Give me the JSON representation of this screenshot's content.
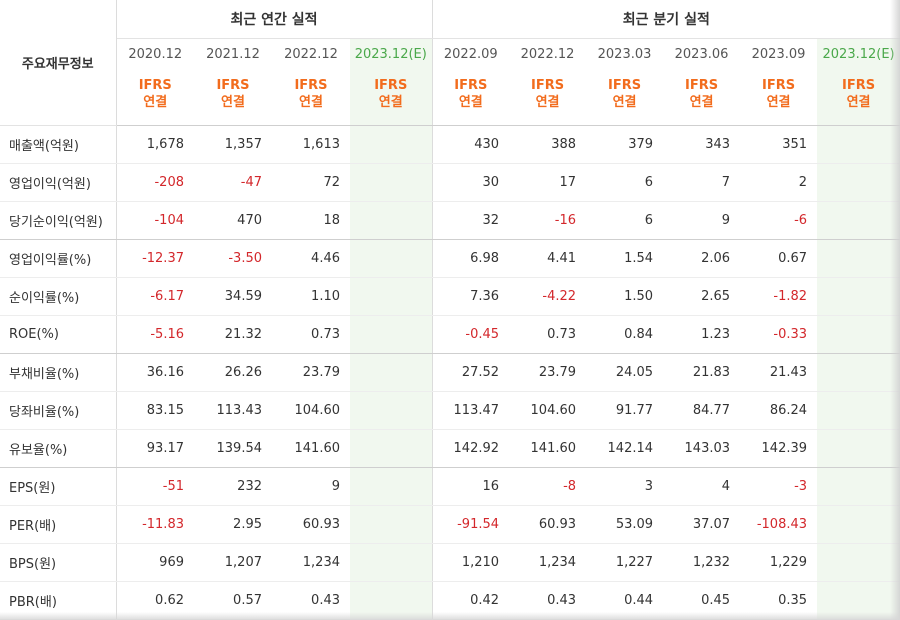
{
  "header": {
    "corner_label": "주요재무정보",
    "annual_title": "최근 연간 실적",
    "quarter_title": "최근 분기 실적",
    "periods": [
      "2020.12",
      "2021.12",
      "2022.12",
      "2023.12(E)",
      "2022.09",
      "2022.12",
      "2023.03",
      "2023.06",
      "2023.09",
      "2023.12(E)"
    ],
    "standard_line1": "IFRS",
    "standard_line2": "연결"
  },
  "colors": {
    "negative": "#d3272b",
    "ifrs": "#f26c1d",
    "estimate_bg": "#f1f8ef"
  },
  "rows": [
    {
      "label": "매출액(억원)",
      "values": [
        "1,678",
        "1,357",
        "1,613",
        "",
        "430",
        "388",
        "379",
        "343",
        "351",
        ""
      ]
    },
    {
      "label": "영업이익(억원)",
      "values": [
        "-208",
        "-47",
        "72",
        "",
        "30",
        "17",
        "6",
        "7",
        "2",
        ""
      ]
    },
    {
      "label": "당기순이익(억원)",
      "values": [
        "-104",
        "470",
        "18",
        "",
        "32",
        "-16",
        "6",
        "9",
        "-6",
        ""
      ]
    },
    {
      "label": "영업이익률(%)",
      "values": [
        "-12.37",
        "-3.50",
        "4.46",
        "",
        "6.98",
        "4.41",
        "1.54",
        "2.06",
        "0.67",
        ""
      ]
    },
    {
      "label": "순이익률(%)",
      "values": [
        "-6.17",
        "34.59",
        "1.10",
        "",
        "7.36",
        "-4.22",
        "1.50",
        "2.65",
        "-1.82",
        ""
      ]
    },
    {
      "label": "ROE(%)",
      "values": [
        "-5.16",
        "21.32",
        "0.73",
        "",
        "-0.45",
        "0.73",
        "0.84",
        "1.23",
        "-0.33",
        ""
      ]
    },
    {
      "label": "부채비율(%)",
      "values": [
        "36.16",
        "26.26",
        "23.79",
        "",
        "27.52",
        "23.79",
        "24.05",
        "21.83",
        "21.43",
        ""
      ]
    },
    {
      "label": "당좌비율(%)",
      "values": [
        "83.15",
        "113.43",
        "104.60",
        "",
        "113.47",
        "104.60",
        "91.77",
        "84.77",
        "86.24",
        ""
      ]
    },
    {
      "label": "유보율(%)",
      "values": [
        "93.17",
        "139.54",
        "141.60",
        "",
        "142.92",
        "141.60",
        "142.14",
        "143.03",
        "142.39",
        ""
      ]
    },
    {
      "label": "EPS(원)",
      "values": [
        "-51",
        "232",
        "9",
        "",
        "16",
        "-8",
        "3",
        "4",
        "-3",
        ""
      ]
    },
    {
      "label": "PER(배)",
      "values": [
        "-11.83",
        "2.95",
        "60.93",
        "",
        "-91.54",
        "60.93",
        "53.09",
        "37.07",
        "-108.43",
        ""
      ]
    },
    {
      "label": "BPS(원)",
      "values": [
        "969",
        "1,207",
        "1,234",
        "",
        "1,210",
        "1,234",
        "1,227",
        "1,232",
        "1,229",
        ""
      ]
    },
    {
      "label": "PBR(배)",
      "values": [
        "0.62",
        "0.57",
        "0.43",
        "",
        "0.42",
        "0.43",
        "0.44",
        "0.45",
        "0.35",
        ""
      ]
    }
  ]
}
